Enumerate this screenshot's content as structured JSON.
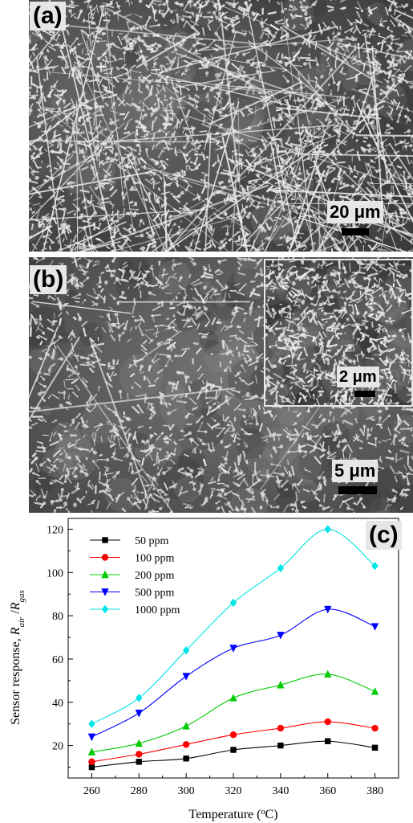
{
  "panels": {
    "a": {
      "label": "(a)",
      "scale": "20 μm"
    },
    "b": {
      "label": "(b)",
      "scale": "5 μm",
      "inset_scale": "2 μm"
    },
    "c": {
      "label": "(c)"
    }
  },
  "chart_data": {
    "type": "line",
    "xlabel": "Temperature (°C)",
    "ylabel": "Sensor response, Rair/Rgas",
    "x": [
      260,
      280,
      300,
      320,
      340,
      360,
      380
    ],
    "xlim": [
      250,
      390
    ],
    "ylim": [
      5,
      125
    ],
    "xticks": [
      "260",
      "280",
      "300",
      "320",
      "340",
      "360",
      "380"
    ],
    "yticks": [
      "20",
      "40",
      "60",
      "80",
      "100",
      "120"
    ],
    "legend_position": "top-left",
    "grid": false,
    "series": [
      {
        "name": "50 ppm",
        "color": "#000000",
        "marker": "square",
        "values": [
          10,
          12.5,
          14,
          18,
          20,
          22,
          19
        ]
      },
      {
        "name": "100 ppm",
        "color": "#ff0000",
        "marker": "circle",
        "values": [
          12.5,
          16,
          20.5,
          25,
          28,
          31,
          28
        ]
      },
      {
        "name": "200 ppm",
        "color": "#00cc00",
        "marker": "triangle-up",
        "values": [
          17,
          21,
          29,
          42,
          48,
          53,
          45
        ]
      },
      {
        "name": "500 ppm",
        "color": "#0000ff",
        "marker": "triangle-down",
        "values": [
          24,
          35,
          52,
          65,
          71,
          83,
          75
        ]
      },
      {
        "name": "1000 ppm",
        "color": "#00e5e5",
        "marker": "diamond",
        "values": [
          30,
          42,
          64,
          86,
          102,
          120,
          103
        ]
      }
    ]
  }
}
